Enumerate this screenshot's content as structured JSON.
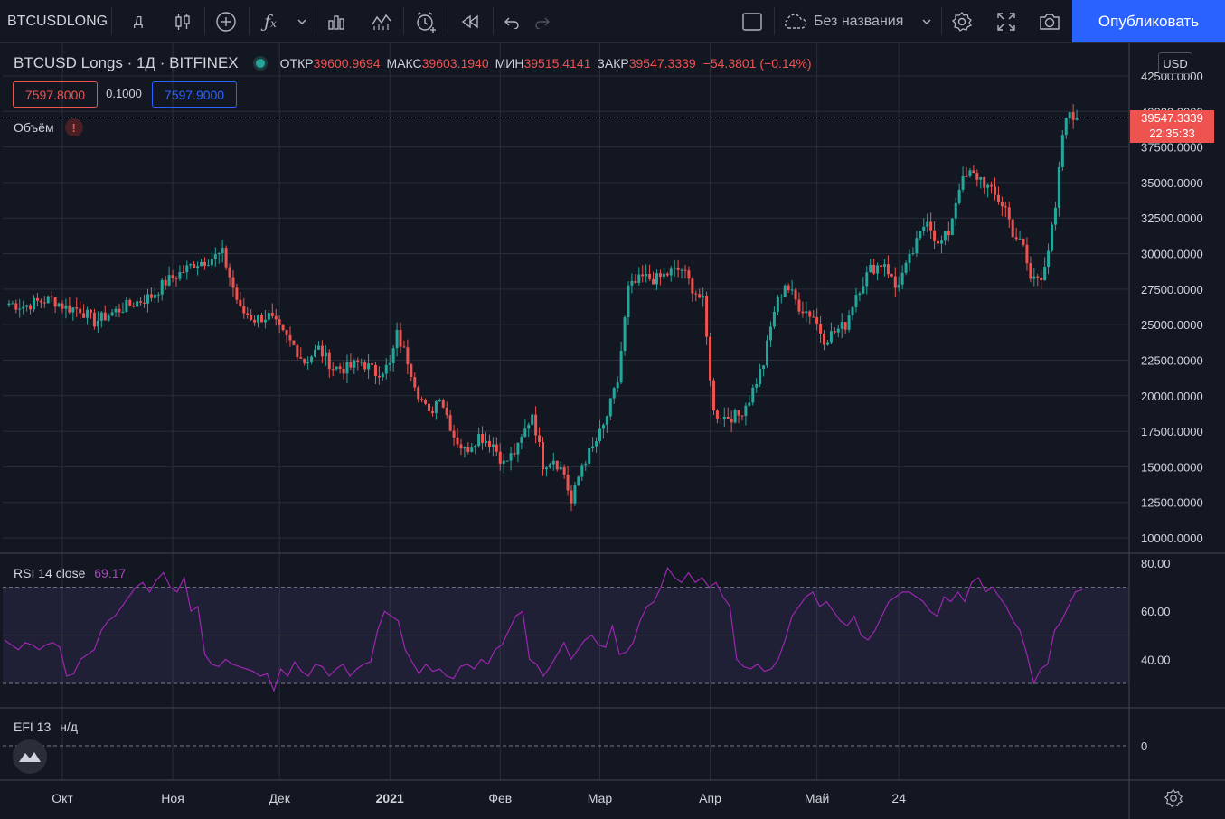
{
  "toolbar": {
    "symbol": "BTCUSDLONG",
    "interval": "Д",
    "layout_name": "Без названия",
    "publish_label": "Опубликовать",
    "icons": [
      "candles-icon",
      "plus-circle-icon",
      "fx-icon",
      "chevron-down-icon",
      "bar-chart-icon",
      "indicators-icon",
      "alert-icon",
      "replay-icon",
      "undo-icon",
      "redo-icon",
      "layout-icon",
      "cloud-icon",
      "settings-icon",
      "fullscreen-icon",
      "camera-icon"
    ]
  },
  "legend": {
    "title": "BTCUSD Longs · 1Д · BITFINEX",
    "open_label": "ОТКР",
    "open": "39600.9694",
    "high_label": "МАКС",
    "high": "39603.1940",
    "low_label": "МИН",
    "low": "39515.4141",
    "close_label": "ЗАКР",
    "close": "39547.3339",
    "change": "−54.3801 (−0.14%)",
    "bid": "7597.8000",
    "spread": "0.1000",
    "ask": "7597.9000",
    "volume_label": "Объём"
  },
  "price_axis": {
    "currency": "USD",
    "last_price": "39547.3339",
    "countdown": "22:35:33",
    "ticks": [
      "42500.0000",
      "40000.0000",
      "37500.0000",
      "35000.0000",
      "32500.0000",
      "30000.0000",
      "27500.0000",
      "25000.0000",
      "22500.0000",
      "20000.0000",
      "17500.0000",
      "15000.0000",
      "12500.0000",
      "10000.0000"
    ]
  },
  "rsi": {
    "label": "RSI 14 close",
    "value": "69.17",
    "ticks": [
      "80.00",
      "60.00",
      "40.00"
    ]
  },
  "efi": {
    "label": "EFI 13",
    "value": "н/д",
    "ticks": [
      "0"
    ]
  },
  "time_axis": {
    "labels": [
      {
        "text": "Окт",
        "bold": false
      },
      {
        "text": "Ноя",
        "bold": false
      },
      {
        "text": "Дек",
        "bold": false
      },
      {
        "text": "2021",
        "bold": true
      },
      {
        "text": "Фев",
        "bold": false
      },
      {
        "text": "Мар",
        "bold": false
      },
      {
        "text": "Апр",
        "bold": false
      },
      {
        "text": "Май",
        "bold": false
      },
      {
        "text": "24",
        "bold": false
      }
    ]
  },
  "colors": {
    "background": "#131722",
    "up": "#26a69a",
    "down": "#ef5350",
    "rsi_line": "#9c27b0",
    "rsi_band": "#7e57c2",
    "accent": "#2962ff"
  },
  "chart_data": {
    "type": "candlestick",
    "series_name": "BTCUSD Longs",
    "ylim": [
      10000,
      42500
    ],
    "close_path": [
      [
        "2020-09-16",
        26500
      ],
      [
        "2020-09-20",
        26300
      ],
      [
        "2020-09-24",
        26600
      ],
      [
        "2020-09-28",
        26800
      ],
      [
        "2020-10-02",
        26200
      ],
      [
        "2020-10-06",
        26100
      ],
      [
        "2020-10-10",
        25200
      ],
      [
        "2020-10-14",
        25700
      ],
      [
        "2020-10-18",
        26200
      ],
      [
        "2020-10-22",
        26600
      ],
      [
        "2020-10-26",
        27000
      ],
      [
        "2020-10-30",
        28000
      ],
      [
        "2020-11-03",
        28600
      ],
      [
        "2020-11-07",
        29300
      ],
      [
        "2020-11-11",
        29600
      ],
      [
        "2020-11-15",
        30000
      ],
      [
        "2020-11-17",
        28400
      ],
      [
        "2020-11-20",
        26000
      ],
      [
        "2020-11-24",
        25400
      ],
      [
        "2020-11-28",
        25600
      ],
      [
        "2020-12-02",
        24300
      ],
      [
        "2020-12-05",
        23500
      ],
      [
        "2020-12-08",
        22400
      ],
      [
        "2020-12-12",
        23300
      ],
      [
        "2020-12-16",
        22000
      ],
      [
        "2020-12-20",
        21900
      ],
      [
        "2020-12-24",
        22400
      ],
      [
        "2020-12-28",
        21600
      ],
      [
        "2021-01-01",
        22100
      ],
      [
        "2021-01-03",
        24300
      ],
      [
        "2021-01-06",
        22500
      ],
      [
        "2021-01-09",
        20200
      ],
      [
        "2021-01-12",
        18600
      ],
      [
        "2021-01-15",
        20100
      ],
      [
        "2021-01-19",
        17200
      ],
      [
        "2021-01-22",
        16100
      ],
      [
        "2021-01-26",
        17200
      ],
      [
        "2021-01-30",
        16600
      ],
      [
        "2021-02-02",
        15200
      ],
      [
        "2021-02-06",
        16300
      ],
      [
        "2021-02-10",
        18800
      ],
      [
        "2021-02-13",
        15200
      ],
      [
        "2021-02-16",
        15600
      ],
      [
        "2021-02-19",
        14500
      ],
      [
        "2021-02-21",
        12400
      ],
      [
        "2021-02-24",
        15200
      ],
      [
        "2021-02-27",
        16300
      ],
      [
        "2021-03-02",
        17800
      ],
      [
        "2021-03-06",
        21000
      ],
      [
        "2021-03-09",
        27500
      ],
      [
        "2021-03-13",
        28300
      ],
      [
        "2021-03-17",
        28200
      ],
      [
        "2021-03-21",
        28700
      ],
      [
        "2021-03-24",
        28900
      ],
      [
        "2021-03-27",
        27600
      ],
      [
        "2021-03-30",
        26600
      ],
      [
        "2021-04-02",
        18800
      ],
      [
        "2021-04-05",
        18500
      ],
      [
        "2021-04-09",
        18600
      ],
      [
        "2021-04-12",
        19800
      ],
      [
        "2021-04-16",
        22300
      ],
      [
        "2021-04-19",
        26000
      ],
      [
        "2021-04-22",
        27900
      ],
      [
        "2021-04-26",
        26300
      ],
      [
        "2021-04-30",
        25600
      ],
      [
        "2021-05-03",
        24000
      ],
      [
        "2021-05-06",
        24500
      ],
      [
        "2021-05-09",
        25000
      ],
      [
        "2021-05-12",
        27200
      ],
      [
        "2021-05-16",
        28900
      ],
      [
        "2021-05-20",
        29400
      ],
      [
        "2021-05-23",
        27600
      ],
      [
        "2021-05-26",
        29000
      ],
      [
        "2021-05-29",
        30700
      ],
      [
        "2021-06-01",
        32600
      ],
      [
        "2021-06-04",
        30500
      ],
      [
        "2021-06-07",
        31500
      ],
      [
        "2021-06-10",
        34800
      ],
      [
        "2021-06-13",
        35600
      ],
      [
        "2021-06-16",
        35300
      ],
      [
        "2021-06-19",
        34300
      ],
      [
        "2021-06-23",
        33200
      ],
      [
        "2021-06-25",
        31500
      ],
      [
        "2021-06-28",
        30400
      ],
      [
        "2021-06-30",
        28200
      ],
      [
        "2021-07-03",
        28500
      ],
      [
        "2021-07-05",
        30300
      ],
      [
        "2021-07-07",
        33000
      ],
      [
        "2021-07-09",
        38400
      ],
      [
        "2021-07-11",
        40000
      ],
      [
        "2021-07-13",
        39547
      ]
    ],
    "rsi": [
      48,
      46,
      44,
      47,
      46,
      44,
      46,
      47,
      45,
      33,
      34,
      40,
      42,
      44,
      52,
      56,
      58,
      62,
      66,
      70,
      72,
      68,
      73,
      76,
      70,
      68,
      74,
      60,
      62,
      42,
      38,
      37,
      40,
      38,
      37,
      36,
      35,
      33,
      34,
      27,
      36,
      33,
      39,
      35,
      33,
      38,
      37,
      33,
      36,
      38,
      33,
      36,
      38,
      39,
      52,
      60,
      58,
      56,
      44,
      39,
      34,
      38,
      35,
      36,
      33,
      32,
      37,
      38,
      36,
      40,
      38,
      44,
      46,
      52,
      58,
      60,
      40,
      38,
      33,
      37,
      42,
      47,
      40,
      44,
      48,
      50,
      46,
      45,
      54,
      42,
      43,
      47,
      56,
      62,
      64,
      70,
      78,
      74,
      72,
      76,
      72,
      74,
      70,
      72,
      66,
      62,
      40,
      37,
      36,
      38,
      35,
      36,
      40,
      48,
      58,
      62,
      66,
      68,
      62,
      64,
      60,
      56,
      54,
      58,
      50,
      48,
      52,
      58,
      64,
      66,
      68,
      68,
      66,
      64,
      60,
      58,
      66,
      64,
      68,
      64,
      72,
      74,
      68,
      70,
      66,
      62,
      56,
      52,
      42,
      30,
      36,
      38,
      52,
      56,
      62,
      68,
      69
    ]
  }
}
